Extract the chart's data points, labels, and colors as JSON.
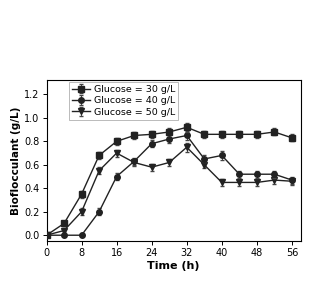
{
  "title": "",
  "xlabel": "Time (h)",
  "ylabel": "Bioflocculant (g/L)",
  "xlim": [
    0,
    58
  ],
  "ylim": [
    -0.05,
    1.32
  ],
  "yticks": [
    0.0,
    0.2,
    0.4,
    0.6,
    0.8,
    1.0,
    1.2
  ],
  "xticks": [
    0,
    8,
    16,
    24,
    32,
    40,
    48,
    56
  ],
  "series": [
    {
      "label": "Glucose = 30 g/L",
      "marker": "s",
      "color": "#222222",
      "linestyle": "-",
      "x": [
        0,
        4,
        8,
        12,
        16,
        20,
        24,
        28,
        32,
        36,
        40,
        44,
        48,
        52,
        56
      ],
      "y": [
        0.0,
        0.1,
        0.35,
        0.68,
        0.8,
        0.85,
        0.86,
        0.88,
        0.92,
        0.86,
        0.86,
        0.86,
        0.86,
        0.88,
        0.83
      ],
      "yerr": [
        0.01,
        0.02,
        0.03,
        0.03,
        0.03,
        0.03,
        0.03,
        0.03,
        0.04,
        0.03,
        0.03,
        0.03,
        0.03,
        0.03,
        0.03
      ]
    },
    {
      "label": "Glucose = 40 g/L",
      "marker": "o",
      "color": "#222222",
      "linestyle": "-",
      "x": [
        0,
        4,
        8,
        12,
        16,
        20,
        24,
        28,
        32,
        36,
        40,
        44,
        48,
        52,
        56
      ],
      "y": [
        0.0,
        0.0,
        0.0,
        0.2,
        0.5,
        0.63,
        0.78,
        0.82,
        0.85,
        0.65,
        0.68,
        0.52,
        0.52,
        0.52,
        0.47
      ],
      "yerr": [
        0.01,
        0.01,
        0.01,
        0.03,
        0.03,
        0.03,
        0.03,
        0.03,
        0.04,
        0.03,
        0.04,
        0.03,
        0.03,
        0.03,
        0.03
      ]
    },
    {
      "label": "Glucose = 50 g/L",
      "marker": "v",
      "color": "#222222",
      "linestyle": "-",
      "x": [
        0,
        4,
        8,
        12,
        16,
        20,
        24,
        28,
        32,
        36,
        40,
        44,
        48,
        52,
        56
      ],
      "y": [
        0.0,
        0.04,
        0.2,
        0.55,
        0.7,
        0.62,
        0.58,
        0.62,
        0.75,
        0.6,
        0.45,
        0.45,
        0.45,
        0.47,
        0.46
      ],
      "yerr": [
        0.01,
        0.02,
        0.03,
        0.03,
        0.03,
        0.03,
        0.03,
        0.03,
        0.04,
        0.03,
        0.03,
        0.03,
        0.03,
        0.03,
        0.03
      ]
    }
  ],
  "background_color": "#ffffff",
  "markersize": 4,
  "linewidth": 1.0,
  "capsize": 1.5,
  "elinewidth": 0.7
}
